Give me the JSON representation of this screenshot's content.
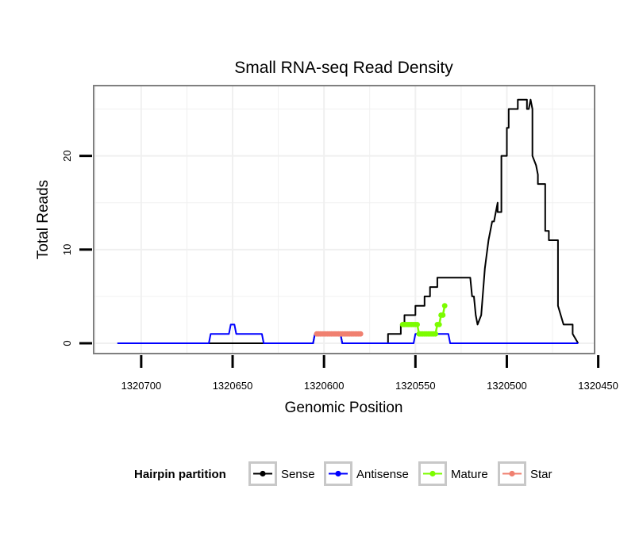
{
  "chart_data": {
    "type": "line",
    "title": "Small RNA-seq Read Density",
    "xlabel": "Genomic Position",
    "ylabel": "Total Reads",
    "x_reversed": true,
    "xlim": [
      1320726,
      1320452
    ],
    "ylim": [
      -1.1,
      27.5
    ],
    "x_ticks": [
      1320700,
      1320650,
      1320600,
      1320550,
      1320500,
      1320450
    ],
    "x_tick_labels": [
      "1320700",
      "1320650",
      "1320600",
      "1320550",
      "1320500",
      "1320450"
    ],
    "y_ticks": [
      0,
      10,
      20
    ],
    "y_tick_labels": [
      "0",
      "10",
      "20"
    ],
    "grid": true,
    "legend": {
      "title": "Hairpin partition",
      "position": "bottom",
      "entries": [
        "Sense",
        "Antisense",
        "Mature",
        "Star"
      ]
    },
    "colors": {
      "Sense": "#000000",
      "Antisense": "#0000ff",
      "Mature": "#7cfc00",
      "Star": "#f08070",
      "panel_border": "#7f7f7f",
      "grid": "#f0f0f0"
    },
    "series": [
      {
        "name": "Sense",
        "x": [
          1320713,
          1320606,
          1320605,
          1320591,
          1320590,
          1320571,
          1320565,
          1320565,
          1320558,
          1320558,
          1320556,
          1320556,
          1320550,
          1320550,
          1320545,
          1320545,
          1320542,
          1320542,
          1320538,
          1320538,
          1320536,
          1320536,
          1320532,
          1320532,
          1320526,
          1320526,
          1320520,
          1320519,
          1320518,
          1320517,
          1320516,
          1320514,
          1320512,
          1320510,
          1320509,
          1320508,
          1320507,
          1320506,
          1320505,
          1320505,
          1320503,
          1320503,
          1320500,
          1320500,
          1320499,
          1320499,
          1320494,
          1320494,
          1320489,
          1320489,
          1320488,
          1320487,
          1320486,
          1320486,
          1320484,
          1320483,
          1320483,
          1320479,
          1320479,
          1320477,
          1320477,
          1320472,
          1320472,
          1320469,
          1320468,
          1320468,
          1320464,
          1320464,
          1320461
        ],
        "y": [
          0,
          0,
          1,
          1,
          0,
          0,
          0,
          1,
          1,
          2,
          2,
          3,
          3,
          4,
          4,
          5,
          5,
          6,
          6,
          7,
          7,
          7,
          7,
          7,
          7,
          7,
          7,
          5,
          5,
          3,
          2,
          3,
          8,
          11,
          12,
          13,
          13,
          14,
          15,
          14,
          14,
          20,
          20,
          23,
          23,
          25,
          25,
          26,
          26,
          25,
          25,
          26,
          25,
          20,
          19,
          18,
          17,
          17,
          12,
          12,
          11,
          11,
          4,
          2,
          2,
          2,
          2,
          1,
          0
        ]
      },
      {
        "name": "Antisense",
        "x": [
          1320713,
          1320663,
          1320662,
          1320652,
          1320651,
          1320649,
          1320648,
          1320634,
          1320633,
          1320606,
          1320605,
          1320591,
          1320590,
          1320551,
          1320550,
          1320532,
          1320531,
          1320461
        ],
        "y": [
          0,
          0,
          1,
          1,
          2,
          2,
          1,
          1,
          0,
          0,
          1,
          1,
          0,
          0,
          1,
          1,
          0,
          0
        ]
      },
      {
        "name": "Mature",
        "x": [
          1320557,
          1320556,
          1320555,
          1320554,
          1320553,
          1320552,
          1320551,
          1320550,
          1320549,
          1320548,
          1320547,
          1320546,
          1320545,
          1320544,
          1320543,
          1320542,
          1320541,
          1320540,
          1320539,
          1320538,
          1320537,
          1320536,
          1320535,
          1320534
        ],
        "y": [
          2,
          2,
          2,
          2,
          2,
          2,
          2,
          2,
          2,
          1,
          1,
          1,
          1,
          1,
          1,
          1,
          1,
          1,
          1,
          2,
          2,
          3,
          3,
          4
        ]
      },
      {
        "name": "Star",
        "x": [
          1320604,
          1320603,
          1320602,
          1320601,
          1320600,
          1320599,
          1320598,
          1320597,
          1320596,
          1320595,
          1320594,
          1320593,
          1320592,
          1320591,
          1320590,
          1320589,
          1320588,
          1320587,
          1320586,
          1320585,
          1320584,
          1320583,
          1320582,
          1320581,
          1320580
        ],
        "y": [
          1,
          1,
          1,
          1,
          1,
          1,
          1,
          1,
          1,
          1,
          1,
          1,
          1,
          1,
          1,
          1,
          1,
          1,
          1,
          1,
          1,
          1,
          1,
          1,
          1
        ]
      }
    ]
  }
}
